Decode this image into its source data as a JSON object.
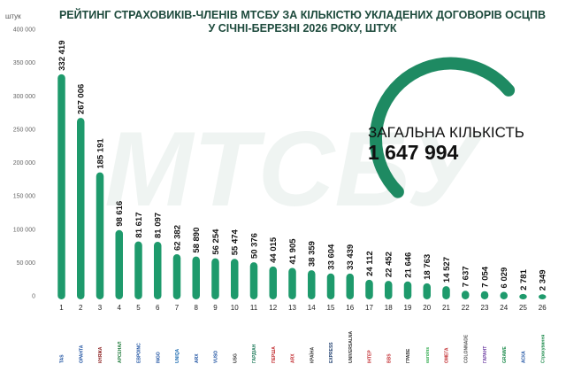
{
  "title_line1": "РЕЙТИНГ СТРАХОВИКІВ-ЧЛЕНІВ МТСБУ ЗА КІЛЬКІСТЮ УКЛАДЕНИХ ДОГОВОРІВ ОСЦПВ",
  "title_line2": "У СІЧНІ-БЕРЕЗНІ 2026 РОКУ, ШТУК",
  "unit": "штук",
  "watermark": "МТСБУ",
  "total_label": "ЗАГАЛЬНА КІЛЬКІСТЬ",
  "total_value": "1 647 994",
  "colors": {
    "bar": "#1e9a6c",
    "ring": "#1e8a62",
    "title": "#1d4a3c"
  },
  "value_labels": [
    "332 419",
    "267 006",
    "185 191",
    "98 616",
    "81 617",
    "81 097",
    "62 382",
    "58 890",
    "56 254",
    "55 474",
    "50 376",
    "44 015",
    "41 905",
    "38 359",
    "33 604",
    "33 439",
    "24 112",
    "22 452",
    "21 646",
    "18 763",
    "14 527",
    "7 637",
    "7 054",
    "6 029",
    "2 781",
    "2 349"
  ],
  "logos": [
    {
      "text": "TAS",
      "icon": "tas-logo",
      "color": "#1a4fa0"
    },
    {
      "text": "ОРАНТА",
      "icon": "oranta-logo",
      "color": "#1a4fa0"
    },
    {
      "text": "КНЯЖА",
      "icon": "knyazha-logo",
      "color": "#8a1c1c"
    },
    {
      "text": "АРСЕНАЛ",
      "icon": "arsenal-logo",
      "color": "#1e7a3a"
    },
    {
      "text": "EBPOINC",
      "icon": "euroins-logo",
      "color": "#1a4fa0"
    },
    {
      "text": "INGO",
      "icon": "ingo-logo",
      "color": "#1a4fa0"
    },
    {
      "text": "UNIQA",
      "icon": "uniqa-logo",
      "color": "#1a6ab0"
    },
    {
      "text": "ARX",
      "icon": "arx-round-logo",
      "color": "#1a4fa0"
    },
    {
      "text": "VUSO",
      "icon": "vuso-logo",
      "color": "#1a4fa0"
    },
    {
      "text": "USG",
      "icon": "usg-logo",
      "color": "#333333"
    },
    {
      "text": "ГАРДІАН",
      "icon": "gardian-logo",
      "color": "#1e7a5a"
    },
    {
      "text": "ПЕРША",
      "icon": "persha-logo",
      "color": "#c0282c"
    },
    {
      "text": "ARX",
      "icon": "arx-logo",
      "color": "#c0282c"
    },
    {
      "text": "КРАЇНА",
      "icon": "kraina-logo",
      "color": "#333333"
    },
    {
      "text": "EXPRESS",
      "icon": "express-logo",
      "color": "#1a3a6a"
    },
    {
      "text": "UNIVERSALNA",
      "icon": "universalna-logo",
      "color": "#333333"
    },
    {
      "text": "ІНТЕР",
      "icon": "inter-logo",
      "color": "#c0282c"
    },
    {
      "text": "BBS",
      "icon": "bbs-logo",
      "color": "#c0282c"
    },
    {
      "text": "ГРАВЕ",
      "icon": "grave-circle-logo",
      "color": "#333333"
    },
    {
      "text": "euroins",
      "icon": "euroins-green-logo",
      "color": "#2aa848"
    },
    {
      "text": "ОМЕГА",
      "icon": "omega-logo",
      "color": "#c0282c"
    },
    {
      "text": "COLONNADE",
      "icon": "colonnade-logo",
      "color": "#555555"
    },
    {
      "text": "ГАРАНТ",
      "icon": "garant-logo",
      "color": "#6a3aa0"
    },
    {
      "text": "GRAWE",
      "icon": "grawe-logo",
      "color": "#1a8a4a"
    },
    {
      "text": "АСКА",
      "icon": "aska-logo",
      "color": "#1a4fa0"
    },
    {
      "text": "Страхування",
      "icon": "strakh-logo",
      "color": "#1a8a4a"
    }
  ],
  "chart_data": {
    "type": "bar",
    "title": "РЕЙТИНГ СТРАХОВИКІВ-ЧЛЕНІВ МТСБУ ЗА КІЛЬКІСТЮ УКЛАДЕНИХ ДОГОВОРІВ ОСЦПВ У СІЧНІ-БЕРЕЗНІ 2026 РОКУ, ШТУК",
    "ylabel": "штук",
    "categories": [
      "1",
      "2",
      "3",
      "4",
      "5",
      "6",
      "7",
      "8",
      "9",
      "10",
      "11",
      "12",
      "13",
      "14",
      "15",
      "16",
      "17",
      "18",
      "19",
      "20",
      "21",
      "22",
      "23",
      "24",
      "25",
      "26"
    ],
    "values": [
      332419,
      267006,
      185191,
      98616,
      81617,
      81097,
      62382,
      58890,
      56254,
      55474,
      50376,
      44015,
      41905,
      38359,
      33604,
      33439,
      24112,
      22452,
      21646,
      18763,
      14527,
      7637,
      7054,
      6029,
      2781,
      2349
    ],
    "ylim": [
      0,
      400000
    ],
    "yticks": [
      "0",
      "50 000",
      "100 000",
      "150 000",
      "200 000",
      "250 000",
      "300 000",
      "350 000",
      "400 000"
    ],
    "ytick_values": [
      0,
      50000,
      100000,
      150000,
      200000,
      250000,
      300000,
      350000,
      400000
    ],
    "grid": false
  }
}
